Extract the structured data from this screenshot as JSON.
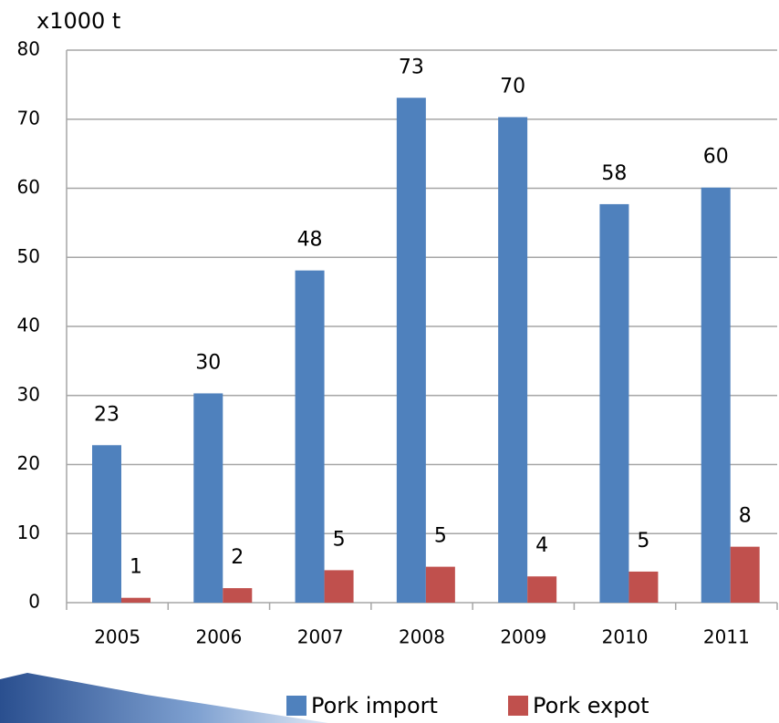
{
  "chart_data": {
    "type": "bar",
    "unit_label": "x1000 t",
    "categories": [
      "2005",
      "2006",
      "2007",
      "2008",
      "2009",
      "2010",
      "2011"
    ],
    "series": [
      {
        "name": "Pork import",
        "color": "#4f81bd",
        "values": [
          22.8,
          30.3,
          48.1,
          73.1,
          70.3,
          57.7,
          60.1
        ],
        "value_labels": [
          "23",
          "30",
          "48",
          "73",
          "70",
          "58",
          "60"
        ]
      },
      {
        "name": "Pork expot",
        "color": "#c0504d",
        "values": [
          0.7,
          2.1,
          4.7,
          5.2,
          3.8,
          4.5,
          8.1
        ],
        "value_labels": [
          "1",
          "2",
          "5",
          "5",
          "4",
          "5",
          "8"
        ]
      }
    ],
    "ylim": [
      0,
      80
    ],
    "yticks": [
      0,
      10,
      20,
      30,
      40,
      50,
      60,
      70,
      80
    ],
    "grid": true
  }
}
